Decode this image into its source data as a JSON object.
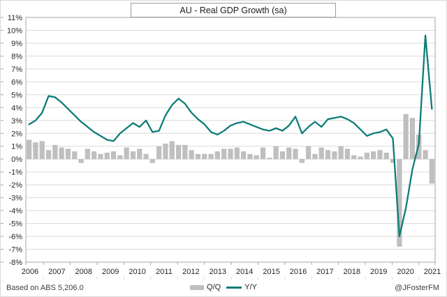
{
  "title": "AU - Real GDP Growth (sa)",
  "footer": {
    "source": "Based on ABS 5,206.0",
    "credit": "@JFosterFM"
  },
  "legend": {
    "items": [
      {
        "label": "Q/Q",
        "swatch": "bar"
      },
      {
        "label": "Y/Y",
        "swatch": "line"
      }
    ]
  },
  "colors": {
    "bar": "#bfbfbf",
    "line": "#0e7c77",
    "grid": "#d9d9d9",
    "plot_border": "#a6a6a6",
    "tick": "#a6a6a6",
    "text": "#262626"
  },
  "chart_data": {
    "type": "bar+line combo, quarterly time series",
    "title": "AU - Real GDP Growth (sa)",
    "xlabel": "",
    "ylabel": "",
    "ylim": [
      -8,
      11
    ],
    "ytick_step": 1,
    "grid": true,
    "legend_position": "bottom",
    "y_tick_labels": [
      "11%",
      "10%",
      "9%",
      "8%",
      "7%",
      "6%",
      "5%",
      "4%",
      "3%",
      "2%",
      "1%",
      "0%",
      "-1%",
      "-2%",
      "-3%",
      "-4%",
      "-5%",
      "-6%",
      "-7%",
      "-8%"
    ],
    "x_tick_labels": [
      "2006",
      "2007",
      "2008",
      "2009",
      "2010",
      "2011",
      "2012",
      "2013",
      "2014",
      "2015",
      "2016",
      "2017",
      "2018",
      "2019",
      "2020",
      "2021"
    ],
    "categories": [
      "2006Q1",
      "2006Q2",
      "2006Q3",
      "2006Q4",
      "2007Q1",
      "2007Q2",
      "2007Q3",
      "2007Q4",
      "2008Q1",
      "2008Q2",
      "2008Q3",
      "2008Q4",
      "2009Q1",
      "2009Q2",
      "2009Q3",
      "2009Q4",
      "2010Q1",
      "2010Q2",
      "2010Q3",
      "2010Q4",
      "2011Q1",
      "2011Q2",
      "2011Q3",
      "2011Q4",
      "2012Q1",
      "2012Q2",
      "2012Q3",
      "2012Q4",
      "2013Q1",
      "2013Q2",
      "2013Q3",
      "2013Q4",
      "2014Q1",
      "2014Q2",
      "2014Q3",
      "2014Q4",
      "2015Q1",
      "2015Q2",
      "2015Q3",
      "2015Q4",
      "2016Q1",
      "2016Q2",
      "2016Q3",
      "2016Q4",
      "2017Q1",
      "2017Q2",
      "2017Q3",
      "2017Q4",
      "2018Q1",
      "2018Q2",
      "2018Q3",
      "2018Q4",
      "2019Q1",
      "2019Q2",
      "2019Q3",
      "2019Q4",
      "2020Q1",
      "2020Q2",
      "2020Q3",
      "2020Q4",
      "2021Q1",
      "2021Q2",
      "2021Q3"
    ],
    "series": [
      {
        "name": "Q/Q",
        "type": "bar",
        "color": "#bfbfbf",
        "values": [
          1.5,
          1.3,
          1.4,
          0.7,
          1.1,
          0.9,
          0.8,
          0.6,
          -0.3,
          0.8,
          0.6,
          0.4,
          0.5,
          0.6,
          0.3,
          0.9,
          0.6,
          0.8,
          0.4,
          -0.3,
          1.0,
          1.2,
          1.4,
          1.1,
          1.1,
          0.7,
          0.4,
          0.4,
          0.4,
          0.6,
          0.8,
          0.8,
          0.9,
          0.6,
          0.4,
          0.3,
          0.9,
          0.1,
          1.0,
          0.6,
          0.9,
          0.8,
          -0.3,
          1.0,
          0.4,
          0.9,
          0.7,
          0.6,
          1.0,
          0.8,
          0.3,
          0.2,
          0.5,
          0.6,
          0.7,
          0.5,
          -0.3,
          -6.8,
          3.5,
          3.2,
          1.9,
          0.7,
          -1.9
        ]
      },
      {
        "name": "Y/Y",
        "type": "line",
        "color": "#0e7c77",
        "values": [
          2.7,
          3.0,
          3.6,
          4.9,
          4.8,
          4.4,
          3.9,
          3.4,
          2.9,
          2.5,
          2.1,
          1.8,
          1.5,
          1.4,
          2.0,
          2.4,
          2.8,
          2.5,
          3.0,
          2.1,
          2.2,
          3.4,
          4.2,
          4.7,
          4.3,
          3.6,
          3.1,
          2.7,
          2.1,
          1.9,
          2.2,
          2.6,
          2.8,
          2.9,
          2.7,
          2.5,
          2.3,
          2.2,
          2.4,
          2.2,
          2.6,
          3.3,
          2.0,
          2.5,
          2.9,
          2.5,
          3.1,
          3.2,
          3.3,
          3.1,
          2.8,
          2.3,
          1.8,
          2.0,
          2.1,
          2.3,
          1.6,
          -6.0,
          -3.8,
          -0.8,
          1.2,
          9.6,
          3.9
        ]
      }
    ]
  }
}
